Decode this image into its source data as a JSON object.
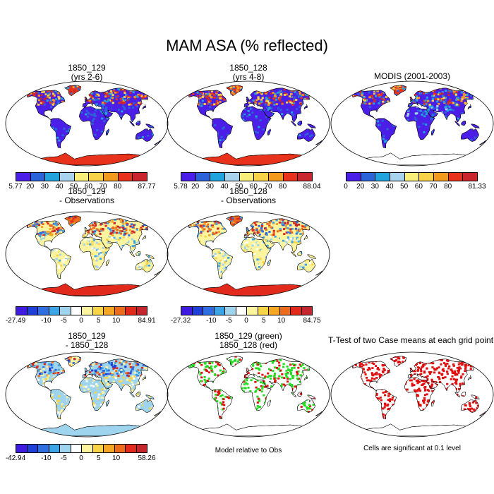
{
  "title": "MAM ASA (% reflected)",
  "panels": [
    {
      "line1": "1850_129",
      "line2": "(yrs 2-6)",
      "style": "abs",
      "ticks": [
        "5.77",
        "20",
        "30",
        "40",
        "50",
        "60",
        "70",
        "80",
        "87.77"
      ]
    },
    {
      "line1": "1850_128",
      "line2": "(yrs 4-8)",
      "style": "abs",
      "ticks": [
        "5.78",
        "20",
        "30",
        "40",
        "50",
        "60",
        "70",
        "80",
        "88.04"
      ]
    },
    {
      "line1": "MODIS (2001-2003)",
      "line2": "",
      "style": "obs",
      "ticks": [
        "0",
        "20",
        "30",
        "40",
        "50",
        "60",
        "70",
        "80",
        "81.33"
      ]
    },
    {
      "line1": "1850_129",
      "line2": "- Observations",
      "style": "diff",
      "ticks": [
        "-27.49",
        "-10",
        "-5",
        "0",
        "5",
        "10",
        "84.91"
      ]
    },
    {
      "line1": "1850_128",
      "line2": "- Observations",
      "style": "diff",
      "ticks": [
        "-27.32",
        "-10",
        "-5",
        "0",
        "5",
        "10",
        "84.75"
      ]
    },
    {
      "line1": "1850_129",
      "line2": "- 1850_128",
      "style": "diff2",
      "ticks": [
        "-42.94",
        "-10",
        "-5",
        "0",
        "5",
        "10",
        "58.26"
      ]
    },
    {
      "line1": "1850_129 (green)",
      "line2": "1850_128 (red)",
      "style": "rel",
      "ticks": []
    },
    {
      "line1": "T-Test of two Case means at each grid point",
      "line2": "",
      "style": "ttest",
      "ticks": []
    }
  ],
  "notes": {
    "rel": "Model relative to Obs",
    "ttest": "Cells are significant at 0.1 level"
  },
  "colors": {
    "abs": [
      "#4b1fe8",
      "#2b64d9",
      "#22a3dd",
      "#a7d3ee",
      "#f7ef7a",
      "#f9d24a",
      "#f39a1d",
      "#e8321b",
      "#c9262e"
    ],
    "diff": [
      "#3f1ae0",
      "#1f3fd9",
      "#2f6ee0",
      "#3da4e6",
      "#9fd4ef",
      "#ffffff",
      "#fdf4a0",
      "#f8d446",
      "#f5a623",
      "#ef6b1c",
      "#e22a1c",
      "#c4262e"
    ],
    "green": "#22dd22",
    "red": "#e01010"
  }
}
